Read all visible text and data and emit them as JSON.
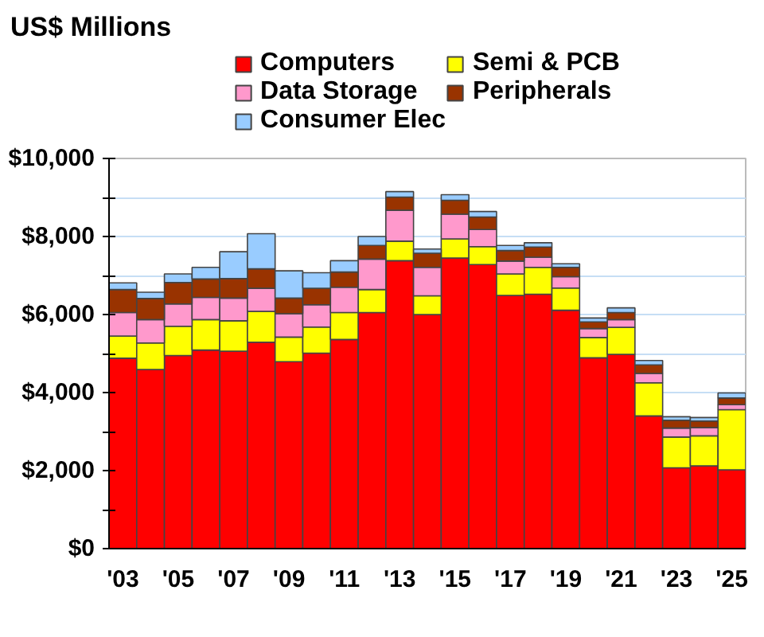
{
  "chart_data": {
    "type": "bar",
    "stacked": true,
    "ylabel": "US$ Millions",
    "categories": [
      "'03",
      null,
      "'05",
      null,
      "'07",
      null,
      "'09",
      null,
      "'11",
      null,
      "'13",
      null,
      "'15",
      null,
      "'17",
      null,
      "'19",
      null,
      "'21",
      null,
      "'23",
      null,
      "'25"
    ],
    "series": [
      {
        "name": "Computers",
        "color": "#ff0000",
        "values": [
          4880,
          4590,
          4950,
          5090,
          5060,
          5290,
          4790,
          5010,
          5360,
          6050,
          7380,
          6000,
          7450,
          7280,
          6490,
          6520,
          6110,
          4890,
          4980,
          3400,
          2070,
          2120,
          2020
        ]
      },
      {
        "name": "Semi & PCB",
        "color": "#ffff00",
        "values": [
          570,
          680,
          750,
          780,
          780,
          790,
          630,
          670,
          690,
          590,
          500,
          480,
          490,
          460,
          550,
          690,
          570,
          520,
          690,
          850,
          790,
          770,
          1540
        ]
      },
      {
        "name": "Data Storage",
        "color": "#ff99cc",
        "values": [
          600,
          600,
          570,
          570,
          580,
          590,
          600,
          570,
          650,
          780,
          790,
          730,
          630,
          440,
          330,
          260,
          290,
          230,
          200,
          240,
          230,
          210,
          130
        ]
      },
      {
        "name": "Peripherals",
        "color": "#993300",
        "values": [
          590,
          540,
          550,
          470,
          500,
          500,
          400,
          420,
          390,
          350,
          340,
          360,
          360,
          320,
          270,
          260,
          240,
          170,
          180,
          220,
          200,
          170,
          170
        ]
      },
      {
        "name": "Consumer Elec",
        "color": "#99ccff",
        "values": [
          170,
          160,
          220,
          300,
          690,
          900,
          700,
          400,
          290,
          230,
          140,
          110,
          140,
          140,
          130,
          110,
          90,
          100,
          120,
          110,
          90,
          90,
          130
        ]
      }
    ],
    "ylim": [
      0,
      10000
    ],
    "yticks": [
      {
        "value": 0,
        "label": "$0"
      },
      {
        "value": 1000,
        "label": null
      },
      {
        "value": 2000,
        "label": "$2,000"
      },
      {
        "value": 3000,
        "label": null
      },
      {
        "value": 4000,
        "label": "$4,000"
      },
      {
        "value": 5000,
        "label": null
      },
      {
        "value": 6000,
        "label": "$6,000"
      },
      {
        "value": 7000,
        "label": null
      },
      {
        "value": 8000,
        "label": "$8,000"
      },
      {
        "value": 9000,
        "label": null
      },
      {
        "value": 10000,
        "label": "$10,000"
      }
    ],
    "grid": "y",
    "legend": "top"
  }
}
